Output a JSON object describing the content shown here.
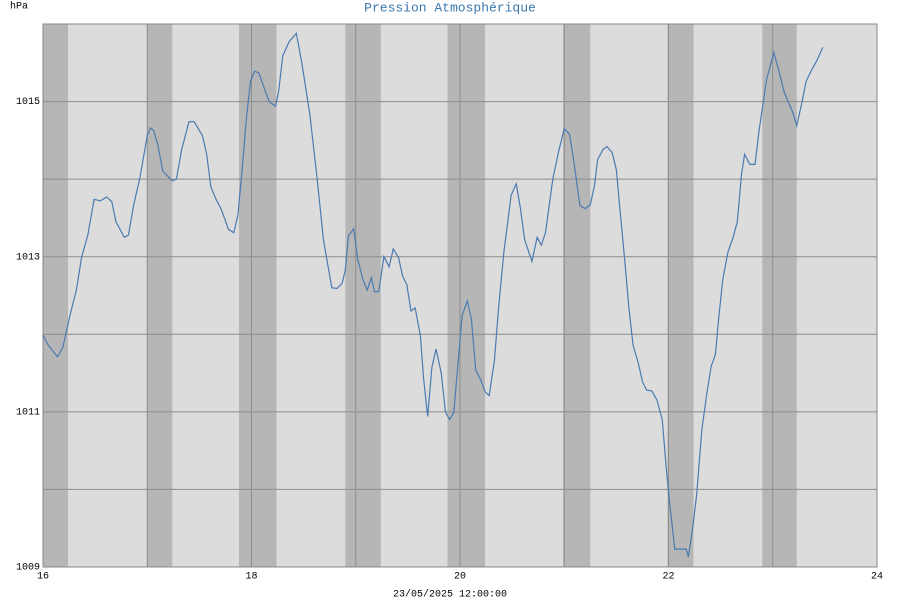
{
  "chart_data": {
    "type": "line",
    "title": "Pression Atmosphérique",
    "ylabel": "hPa",
    "xlabel": "23/05/2025 12:00:00",
    "xlim": [
      16,
      24
    ],
    "xticks": [
      16,
      18,
      20,
      22,
      24
    ],
    "minor_xticks": [
      17,
      19,
      21,
      23
    ],
    "ylim": [
      1009,
      1016
    ],
    "yticks": [
      1009,
      1011,
      1013,
      1015
    ],
    "minor_yticks": [
      1010,
      1012,
      1014,
      1016
    ],
    "grid": true,
    "background_color": "#dcdcdc",
    "band_color": "#b6b6b6",
    "shaded_bands": [
      [
        16.0,
        16.24
      ],
      [
        17.0,
        17.24
      ],
      [
        17.88,
        18.24
      ],
      [
        18.9,
        19.24
      ],
      [
        19.88,
        20.24
      ],
      [
        20.99,
        21.25
      ],
      [
        21.99,
        22.24
      ],
      [
        22.9,
        23.23
      ]
    ],
    "color": "#4a7bb0",
    "x": [
      16.0,
      16.05,
      16.14,
      16.19,
      16.26,
      16.32,
      16.37,
      16.43,
      16.49,
      16.55,
      16.61,
      16.66,
      16.7,
      16.78,
      16.82,
      16.87,
      16.93,
      17.0,
      17.03,
      17.06,
      17.1,
      17.15,
      17.24,
      17.28,
      17.33,
      17.4,
      17.45,
      17.53,
      17.57,
      17.61,
      17.66,
      17.71,
      17.78,
      17.83,
      17.87,
      17.91,
      17.95,
      17.99,
      18.03,
      18.07,
      18.12,
      18.17,
      18.23,
      18.26,
      18.3,
      18.36,
      18.43,
      18.48,
      18.56,
      18.63,
      18.69,
      18.77,
      18.82,
      18.87,
      18.9,
      18.93,
      18.98,
      19.02,
      19.07,
      19.11,
      19.15,
      19.18,
      19.22,
      19.27,
      19.32,
      19.36,
      19.41,
      19.45,
      19.49,
      19.53,
      19.57,
      19.62,
      19.65,
      19.69,
      19.73,
      19.77,
      19.82,
      19.86,
      19.9,
      19.94,
      19.98,
      20.02,
      20.07,
      20.11,
      20.15,
      20.2,
      20.24,
      20.28,
      20.33,
      20.37,
      20.42,
      20.49,
      20.54,
      20.58,
      20.62,
      20.69,
      20.74,
      20.78,
      20.82,
      20.89,
      20.95,
      21.0,
      21.05,
      21.09,
      21.15,
      21.2,
      21.25,
      21.29,
      21.32,
      21.37,
      21.41,
      21.46,
      21.5,
      21.53,
      21.58,
      21.62,
      21.66,
      21.71,
      21.75,
      21.79,
      21.84,
      21.89,
      21.94,
      21.98,
      22.01,
      22.06,
      22.12,
      22.17,
      22.19,
      22.23,
      22.27,
      22.32,
      22.37,
      22.41,
      22.45,
      22.48,
      22.52,
      22.57,
      22.62,
      22.66,
      22.7,
      22.73,
      22.78,
      22.83,
      22.87,
      22.91,
      22.94,
      23.01,
      23.06,
      23.11,
      23.16,
      23.19,
      23.23,
      23.28,
      23.32,
      23.37,
      23.42,
      23.48
    ],
    "values": [
      1011.99,
      1011.86,
      1011.71,
      1011.83,
      1012.25,
      1012.57,
      1012.99,
      1013.28,
      1013.74,
      1013.72,
      1013.77,
      1013.71,
      1013.45,
      1013.25,
      1013.28,
      1013.67,
      1014.02,
      1014.56,
      1014.66,
      1014.63,
      1014.45,
      1014.1,
      1013.98,
      1014.0,
      1014.38,
      1014.74,
      1014.74,
      1014.56,
      1014.32,
      1013.9,
      1013.74,
      1013.61,
      1013.35,
      1013.31,
      1013.54,
      1014.12,
      1014.77,
      1015.26,
      1015.39,
      1015.37,
      1015.18,
      1015.0,
      1014.94,
      1015.13,
      1015.59,
      1015.77,
      1015.88,
      1015.52,
      1014.83,
      1014.0,
      1013.22,
      1012.6,
      1012.59,
      1012.66,
      1012.83,
      1013.27,
      1013.36,
      1012.96,
      1012.7,
      1012.57,
      1012.73,
      1012.55,
      1012.55,
      1013.0,
      1012.87,
      1013.1,
      1012.99,
      1012.75,
      1012.64,
      1012.3,
      1012.34,
      1011.98,
      1011.44,
      1010.94,
      1011.57,
      1011.81,
      1011.5,
      1011.0,
      1010.9,
      1010.99,
      1011.61,
      1012.24,
      1012.43,
      1012.19,
      1011.54,
      1011.41,
      1011.26,
      1011.21,
      1011.66,
      1012.34,
      1013.05,
      1013.79,
      1013.94,
      1013.62,
      1013.22,
      1012.94,
      1013.25,
      1013.15,
      1013.31,
      1014.0,
      1014.38,
      1014.65,
      1014.58,
      1014.25,
      1013.66,
      1013.62,
      1013.67,
      1013.92,
      1014.25,
      1014.38,
      1014.42,
      1014.34,
      1014.12,
      1013.67,
      1012.96,
      1012.34,
      1011.86,
      1011.63,
      1011.39,
      1011.28,
      1011.27,
      1011.15,
      1010.9,
      1010.25,
      1009.84,
      1009.23,
      1009.23,
      1009.23,
      1009.13,
      1009.48,
      1009.93,
      1010.77,
      1011.26,
      1011.59,
      1011.74,
      1012.19,
      1012.7,
      1013.06,
      1013.25,
      1013.45,
      1014.06,
      1014.32,
      1014.19,
      1014.19,
      1014.64,
      1015.0,
      1015.28,
      1015.63,
      1015.39,
      1015.12,
      1014.96,
      1014.87,
      1014.69,
      1014.99,
      1015.26,
      1015.4,
      1015.52,
      1015.7
    ]
  }
}
